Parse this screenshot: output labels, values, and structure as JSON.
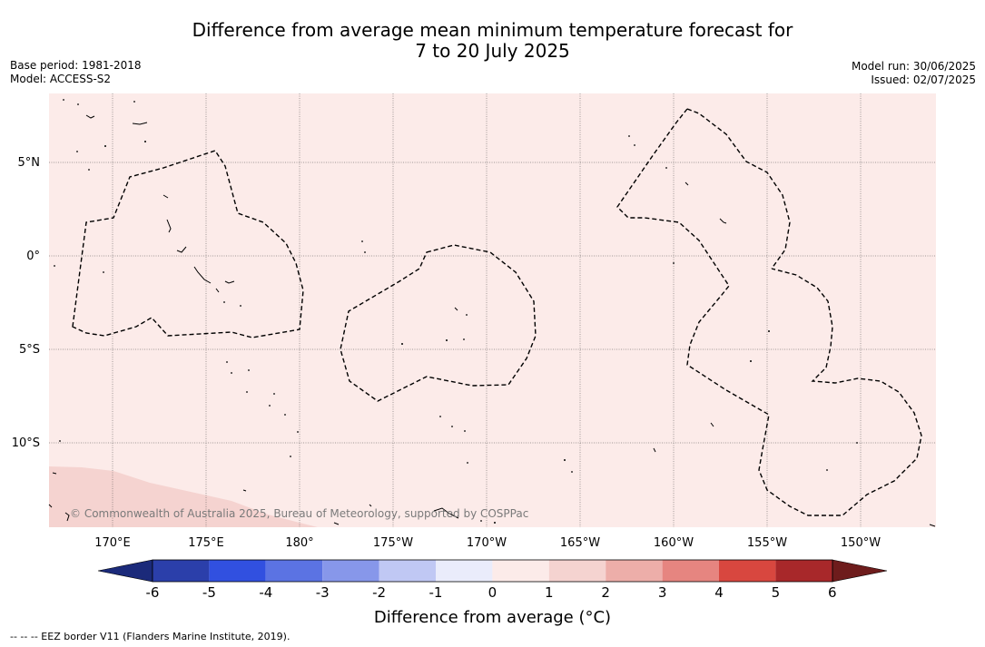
{
  "title": {
    "line1": "Difference from average mean minimum temperature forecast for",
    "line2": "7 to 20 July 2025"
  },
  "meta_left": {
    "base_period": "Base period: 1981-2018",
    "model": "Model: ACCESS-S2"
  },
  "meta_right": {
    "model_run": "Model run: 30/06/2025",
    "issued": "Issued: 02/07/2025"
  },
  "map": {
    "background_color": "#fcebe9",
    "warm_region_color": "#f5d3d0",
    "latitude_labels": [
      "5°N",
      "0°",
      "5°S",
      "10°S"
    ],
    "longitude_labels": [
      "170°E",
      "175°E",
      "180°",
      "175°W",
      "170°W",
      "165°W",
      "160°W",
      "155°W",
      "150°W"
    ],
    "copyright": "© Commonwealth of Australia 2025, Bureau of Meteorology, supported by COSPPac"
  },
  "colorbar": {
    "ticks": [
      "-6",
      "-5",
      "-4",
      "-3",
      "-2",
      "-1",
      "0",
      "1",
      "2",
      "3",
      "4",
      "5",
      "6"
    ],
    "colors": [
      "#1b2a7a",
      "#2b3faa",
      "#3150e0",
      "#5b73e3",
      "#8797ea",
      "#c0c8f4",
      "#eaecfb",
      "#fcebe9",
      "#f5d3d0",
      "#edaea9",
      "#e68580",
      "#d8473f",
      "#a8282a",
      "#6e1c1c"
    ],
    "title": "Difference from average (°C)"
  },
  "footnote": "--  --  -- EEZ border V11 (Flanders Marine Institute, 2019)."
}
